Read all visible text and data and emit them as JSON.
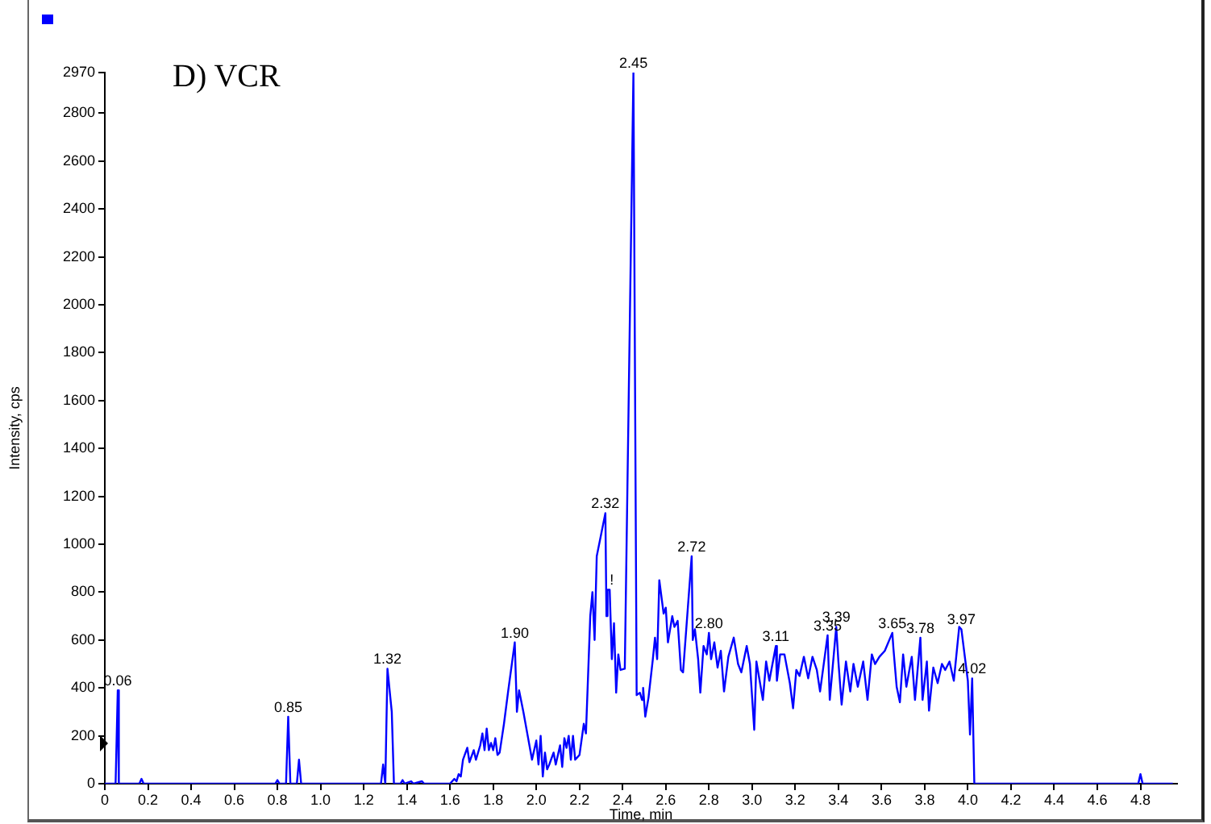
{
  "chart_data": {
    "type": "line",
    "title": "D) VCR",
    "xlabel": "Time, min",
    "ylabel": "Intensity, cps",
    "xlim": [
      0,
      4.97
    ],
    "xticks": [
      0,
      {
        "value": 0.2,
        "label": "0.2"
      },
      {
        "value": 0.4,
        "label": "0.4"
      },
      {
        "value": 0.6,
        "label": "0.6"
      },
      {
        "value": 0.8,
        "label": "0.8"
      },
      {
        "value": 1,
        "label": "1.0"
      },
      {
        "value": 1.2,
        "label": "1.2"
      },
      {
        "value": 1.4,
        "label": "1.4"
      },
      {
        "value": 1.6,
        "label": "1.6"
      },
      {
        "value": 1.8,
        "label": "1.8"
      },
      {
        "value": 2,
        "label": "2.0"
      },
      {
        "value": 2.2,
        "label": "2.2"
      },
      {
        "value": 2.4,
        "label": "2.4"
      },
      {
        "value": 2.6,
        "label": "2.6"
      },
      {
        "value": 2.8,
        "label": "2.8"
      },
      {
        "value": 3,
        "label": "3.0"
      },
      {
        "value": 3.2,
        "label": "3.2"
      },
      {
        "value": 3.4,
        "label": "3.4"
      },
      {
        "value": 3.6,
        "label": "3.6"
      },
      {
        "value": 3.8,
        "label": "3.8"
      },
      {
        "value": 4,
        "label": "4.0"
      },
      {
        "value": 4.2,
        "label": "4.2"
      },
      {
        "value": 4.4,
        "label": "4.4"
      },
      {
        "value": 4.6,
        "label": "4.6"
      },
      {
        "value": 4.8,
        "label": "4.8"
      }
    ],
    "ylim": [
      0,
      2970
    ],
    "yticks": [
      0,
      200,
      400,
      600,
      800,
      1000,
      1200,
      1400,
      1600,
      1800,
      2000,
      2200,
      2400,
      2600,
      2800,
      2970
    ],
    "grid": false,
    "legend": false,
    "marker": "none",
    "line_style": "solid",
    "series": [
      {
        "color": "#0000ff",
        "x": [
          0,
          0.05,
          0.06,
          0.065,
          0.16,
          0.17,
          0.18,
          0.79,
          0.8,
          0.81,
          0.84,
          0.85,
          0.86,
          0.89,
          0.9,
          0.91,
          1.28,
          1.29,
          1.3,
          1.31,
          1.33,
          1.34,
          1.37,
          1.38,
          1.39,
          1.42,
          1.43,
          1.47,
          1.48,
          1.6,
          1.62,
          1.63,
          1.64,
          1.65,
          1.66,
          1.68,
          1.69,
          1.71,
          1.72,
          1.74,
          1.75,
          1.76,
          1.77,
          1.78,
          1.79,
          1.8,
          1.81,
          1.82,
          1.83,
          1.85,
          1.87,
          1.9,
          1.91,
          1.92,
          1.94,
          1.96,
          1.98,
          2,
          2.01,
          2.02,
          2.03,
          2.04,
          2.05,
          2.06,
          2.08,
          2.09,
          2.11,
          2.12,
          2.13,
          2.14,
          2.15,
          2.16,
          2.17,
          2.18,
          2.2,
          2.22,
          2.23,
          2.25,
          2.26,
          2.27,
          2.28,
          2.32,
          2.325,
          2.33,
          2.34,
          2.35,
          2.36,
          2.37,
          2.38,
          2.39,
          2.41,
          2.45,
          2.465,
          2.48,
          2.49,
          2.495,
          2.505,
          2.52,
          2.54,
          2.55,
          2.56,
          2.57,
          2.59,
          2.6,
          2.61,
          2.63,
          2.64,
          2.655,
          2.67,
          2.68,
          2.72,
          2.725,
          2.735,
          2.75,
          2.76,
          2.775,
          2.79,
          2.8,
          2.81,
          2.825,
          2.84,
          2.855,
          2.87,
          2.89,
          2.915,
          2.935,
          2.95,
          2.975,
          2.99,
          3.01,
          3.02,
          3.05,
          3.065,
          3.08,
          3.11,
          3.115,
          3.13,
          3.15,
          3.175,
          3.19,
          3.205,
          3.22,
          3.24,
          3.26,
          3.28,
          3.3,
          3.315,
          3.35,
          3.36,
          3.39,
          3.4,
          3.415,
          3.435,
          3.455,
          3.47,
          3.49,
          3.515,
          3.535,
          3.555,
          3.57,
          3.59,
          3.615,
          3.65,
          3.655,
          3.67,
          3.685,
          3.7,
          3.715,
          3.74,
          3.755,
          3.78,
          3.79,
          3.81,
          3.82,
          3.84,
          3.86,
          3.88,
          3.895,
          3.915,
          3.935,
          3.96,
          3.97,
          4,
          4.01,
          4.02,
          4.03,
          4.79,
          4.8,
          4.81,
          4.95
        ],
        "values": [
          0,
          0,
          390,
          0,
          0,
          20,
          0,
          0,
          15,
          0,
          0,
          280,
          0,
          0,
          100,
          0,
          0,
          80,
          0,
          480,
          300,
          0,
          0,
          15,
          0,
          10,
          0,
          10,
          0,
          0,
          20,
          10,
          40,
          30,
          100,
          150,
          90,
          140,
          100,
          160,
          210,
          140,
          230,
          140,
          170,
          140,
          190,
          120,
          130,
          250,
          390,
          590,
          300,
          390,
          300,
          200,
          100,
          180,
          80,
          200,
          30,
          130,
          60,
          80,
          130,
          80,
          160,
          70,
          190,
          150,
          200,
          100,
          200,
          100,
          120,
          250,
          210,
          700,
          800,
          600,
          950,
          1130,
          700,
          810,
          810,
          520,
          670,
          380,
          540,
          475,
          480,
          2970,
          370,
          380,
          350,
          400,
          280,
          360,
          520,
          610,
          520,
          850,
          710,
          735,
          590,
          700,
          655,
          680,
          475,
          465,
          950,
          600,
          645,
          520,
          380,
          575,
          540,
          630,
          520,
          590,
          485,
          555,
          385,
          530,
          610,
          500,
          465,
          575,
          500,
          225,
          510,
          350,
          510,
          430,
          575,
          430,
          540,
          540,
          420,
          315,
          475,
          450,
          530,
          440,
          530,
          475,
          385,
          620,
          350,
          655,
          510,
          330,
          510,
          385,
          500,
          405,
          510,
          350,
          540,
          500,
          530,
          555,
          630,
          565,
          405,
          340,
          540,
          405,
          530,
          350,
          610,
          350,
          510,
          305,
          485,
          420,
          500,
          475,
          510,
          430,
          655,
          645,
          430,
          205,
          440,
          0,
          0,
          40,
          0,
          0
        ]
      }
    ],
    "annotations": [
      {
        "text": "0.06",
        "x": 0.06,
        "y": 390
      },
      {
        "text": "0.85",
        "x": 0.85,
        "y": 280
      },
      {
        "text": "1.32",
        "x": 1.31,
        "y": 480
      },
      {
        "text": "1.90",
        "x": 1.9,
        "y": 590
      },
      {
        "text": "2.32",
        "x": 2.32,
        "y": 1130
      },
      {
        "text": "!",
        "x": 2.35,
        "y": 810
      },
      {
        "text": "2.45",
        "x": 2.45,
        "y": 2970
      },
      {
        "text": "2.72",
        "x": 2.72,
        "y": 950
      },
      {
        "text": "2.80",
        "x": 2.8,
        "y": 630
      },
      {
        "text": "3.11",
        "x": 3.11,
        "y": 575
      },
      {
        "text": "3.35",
        "x": 3.35,
        "y": 620
      },
      {
        "text": "3.39",
        "x": 3.39,
        "y": 655
      },
      {
        "text": "3.65",
        "x": 3.65,
        "y": 630
      },
      {
        "text": "3.78",
        "x": 3.78,
        "y": 610
      },
      {
        "text": "3.97",
        "x": 3.97,
        "y": 645
      },
      {
        "text": "4.02",
        "x": 4.02,
        "y": 440
      }
    ]
  }
}
